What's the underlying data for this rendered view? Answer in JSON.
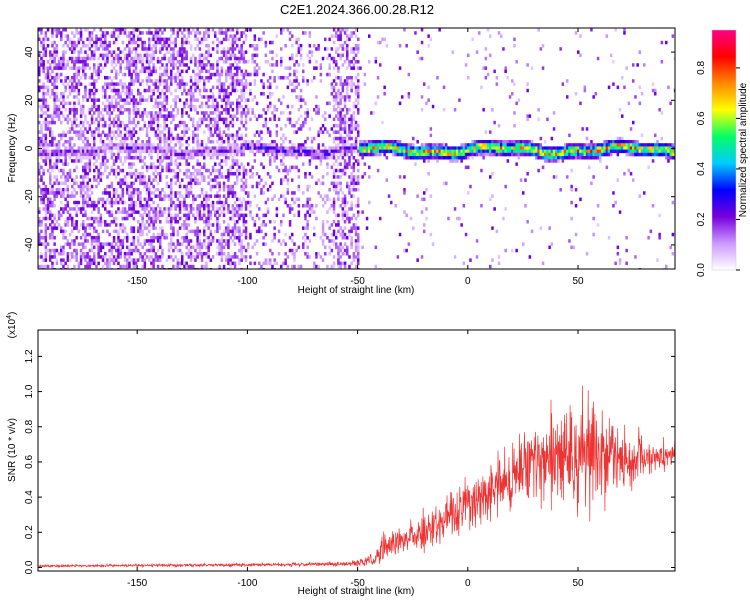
{
  "title": "C2E1.2024.366.00.28.R12",
  "chart_data": [
    {
      "type": "heatmap",
      "xlabel": "Height of straight line (km)",
      "ylabel": "Frequency (Hz)",
      "xlim": [
        -195,
        94
      ],
      "ylim": [
        -50,
        50
      ],
      "x_ticks": [
        -150,
        -100,
        -50,
        0,
        50
      ],
      "x_tick_labels": [
        "-150",
        "-100",
        "-50",
        "0",
        "50"
      ],
      "y_ticks": [
        -40,
        -20,
        0,
        20,
        40
      ],
      "y_tick_labels": [
        "-40",
        "-20",
        "0",
        "20",
        "40"
      ],
      "colorbar": {
        "label": "Normalized spectral amplitude",
        "range": [
          0,
          0.95
        ],
        "ticks": [
          0.0,
          0.2,
          0.4,
          0.6,
          0.8
        ],
        "tick_labels": [
          "0.0",
          "0.2",
          "0.4",
          "0.6",
          "0.8"
        ],
        "colors": [
          "#ffffff",
          "#cc99ff",
          "#7700dd",
          "#0000ff",
          "#00ccff",
          "#00ff66",
          "#ffff00",
          "#ff8800",
          "#ff0000",
          "#ff0088"
        ]
      },
      "regions": [
        {
          "x": [
            -195,
            -101
          ],
          "band_center_hz": 0,
          "band_peak_amplitude": 0.3,
          "background": "dense purple noise"
        },
        {
          "x": [
            -101,
            -62
          ],
          "band_center_hz": 0,
          "band_peak_amplitude": 0.4,
          "background": "moderate purple noise"
        },
        {
          "x": [
            -62,
            -50
          ],
          "band_center_hz": 0,
          "band_peak_amplitude": 0.3,
          "background": "dense purple noise"
        },
        {
          "x": [
            -50,
            94
          ],
          "band_center_hz": 0,
          "band_peak_amplitude": 0.9,
          "background": "sparse"
        }
      ]
    },
    {
      "type": "line",
      "xlabel": "Height of straight line (km)",
      "ylabel": "SNR (10 * v/v)",
      "y_multiplier": "(x10",
      "y_multiplier_exp": "4",
      "xlim": [
        -195,
        94
      ],
      "ylim": [
        -0.02,
        1.35
      ],
      "x_ticks": [
        -150,
        -100,
        -50,
        0,
        50
      ],
      "x_tick_labels": [
        "-150",
        "-100",
        "-50",
        "0",
        "50"
      ],
      "y_ticks": [
        0.0,
        0.2,
        0.4,
        0.6,
        0.8,
        1.0,
        1.2
      ],
      "y_tick_labels": [
        "0.0",
        "0.2",
        "0.4",
        "0.6",
        "0.8",
        "1.0",
        "1.2"
      ],
      "color": "#ee3333",
      "series_envelope": {
        "x": [
          -195,
          -150,
          -100,
          -55,
          -42,
          -38,
          -30,
          -20,
          -10,
          0,
          10,
          20,
          30,
          40,
          50,
          60,
          70,
          80,
          94
        ],
        "mean": [
          0.008,
          0.012,
          0.015,
          0.02,
          0.04,
          0.12,
          0.15,
          0.2,
          0.28,
          0.35,
          0.45,
          0.52,
          0.58,
          0.62,
          0.65,
          0.64,
          0.62,
          0.63,
          0.64
        ],
        "amplitude": [
          0.008,
          0.01,
          0.012,
          0.015,
          0.05,
          0.1,
          0.12,
          0.15,
          0.17,
          0.2,
          0.22,
          0.25,
          0.3,
          0.35,
          0.45,
          0.35,
          0.22,
          0.15,
          0.1
        ]
      }
    }
  ]
}
